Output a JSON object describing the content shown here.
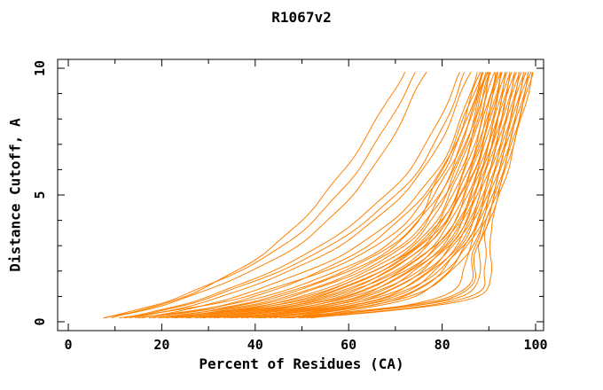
{
  "chart_data": {
    "type": "line",
    "title": "R1067v2",
    "xlabel": "Percent of Residues (CA)",
    "ylabel": "Distance Cutoff, A",
    "xlim": [
      0,
      100
    ],
    "ylim": [
      0,
      10
    ],
    "x_major_ticks": [
      0,
      20,
      40,
      60,
      80,
      100
    ],
    "x_minor_tick_step": 10,
    "y_major_ticks": [
      0,
      5,
      10
    ],
    "y_minor_tick_step": 1,
    "grid": false,
    "legend": "none",
    "background": "#ffffff",
    "axis_color": "#000000",
    "curve_color": "#ff8000",
    "curve_point_cutoffs": [
      0.15,
      1,
      3,
      6,
      9.85
    ],
    "curves": [
      [
        7.5,
        24,
        46,
        62,
        74.5
      ],
      [
        9,
        26,
        49,
        65,
        76.5
      ],
      [
        8,
        25,
        44,
        59,
        72
      ],
      [
        12,
        30,
        54,
        73,
        84
      ],
      [
        14,
        33,
        58,
        76,
        86
      ],
      [
        16,
        36,
        62,
        79,
        87.5
      ],
      [
        13,
        31,
        56,
        75,
        85
      ],
      [
        18,
        40,
        64,
        80,
        88
      ],
      [
        20,
        45,
        70,
        80,
        88.5
      ],
      [
        22,
        48,
        72,
        82,
        89
      ],
      [
        24,
        50,
        73,
        83,
        89.5
      ],
      [
        26,
        52,
        74,
        84,
        90
      ],
      [
        28,
        54,
        75,
        84.5,
        90.5
      ],
      [
        30,
        56,
        76,
        85,
        91
      ],
      [
        32,
        58,
        77,
        85.5,
        91.5
      ],
      [
        25,
        55,
        76.5,
        86,
        92
      ],
      [
        34,
        60,
        78,
        86.5,
        92.3
      ],
      [
        36,
        62,
        79,
        87,
        92.6
      ],
      [
        27,
        57,
        78.5,
        87.5,
        93
      ],
      [
        38,
        64,
        80,
        88,
        93.3
      ],
      [
        29,
        59,
        79.5,
        88.2,
        93.6
      ],
      [
        40,
        66,
        81,
        88.5,
        94
      ],
      [
        31,
        61,
        80.5,
        88.8,
        94.3
      ],
      [
        42,
        68,
        82,
        89,
        94.6
      ],
      [
        33,
        63,
        81.5,
        89.3,
        95
      ],
      [
        44,
        70,
        83,
        89.6,
        95.3
      ],
      [
        35,
        65,
        82.5,
        90,
        95.6
      ],
      [
        46,
        72,
        84,
        90.3,
        96
      ],
      [
        37,
        67,
        83.5,
        90.6,
        96.3
      ],
      [
        48,
        74,
        85,
        91,
        96.6
      ],
      [
        39,
        69,
        84.5,
        91.3,
        97
      ],
      [
        50,
        80,
        86,
        91.6,
        97.3
      ],
      [
        41,
        71,
        85.5,
        92,
        97.6
      ],
      [
        45,
        82,
        87,
        92.3,
        98
      ],
      [
        43,
        73,
        86.5,
        92.6,
        98.3
      ],
      [
        47,
        84,
        88,
        93,
        98.6
      ],
      [
        49,
        83,
        87.5,
        93.3,
        99
      ],
      [
        51,
        86,
        88.5,
        93.6,
        99.3
      ],
      [
        23,
        53,
        75.5,
        86.8,
        92.8
      ],
      [
        19,
        47,
        71,
        83.5,
        90.2
      ],
      [
        21,
        51,
        74.5,
        85.8,
        91.8
      ],
      [
        52,
        87.5,
        89,
        94,
        99.5
      ],
      [
        17,
        44,
        69,
        82.5,
        89.8
      ],
      [
        15,
        42,
        68,
        81.5,
        89.2
      ],
      [
        11,
        38,
        66,
        80.5,
        88.8
      ]
    ]
  }
}
